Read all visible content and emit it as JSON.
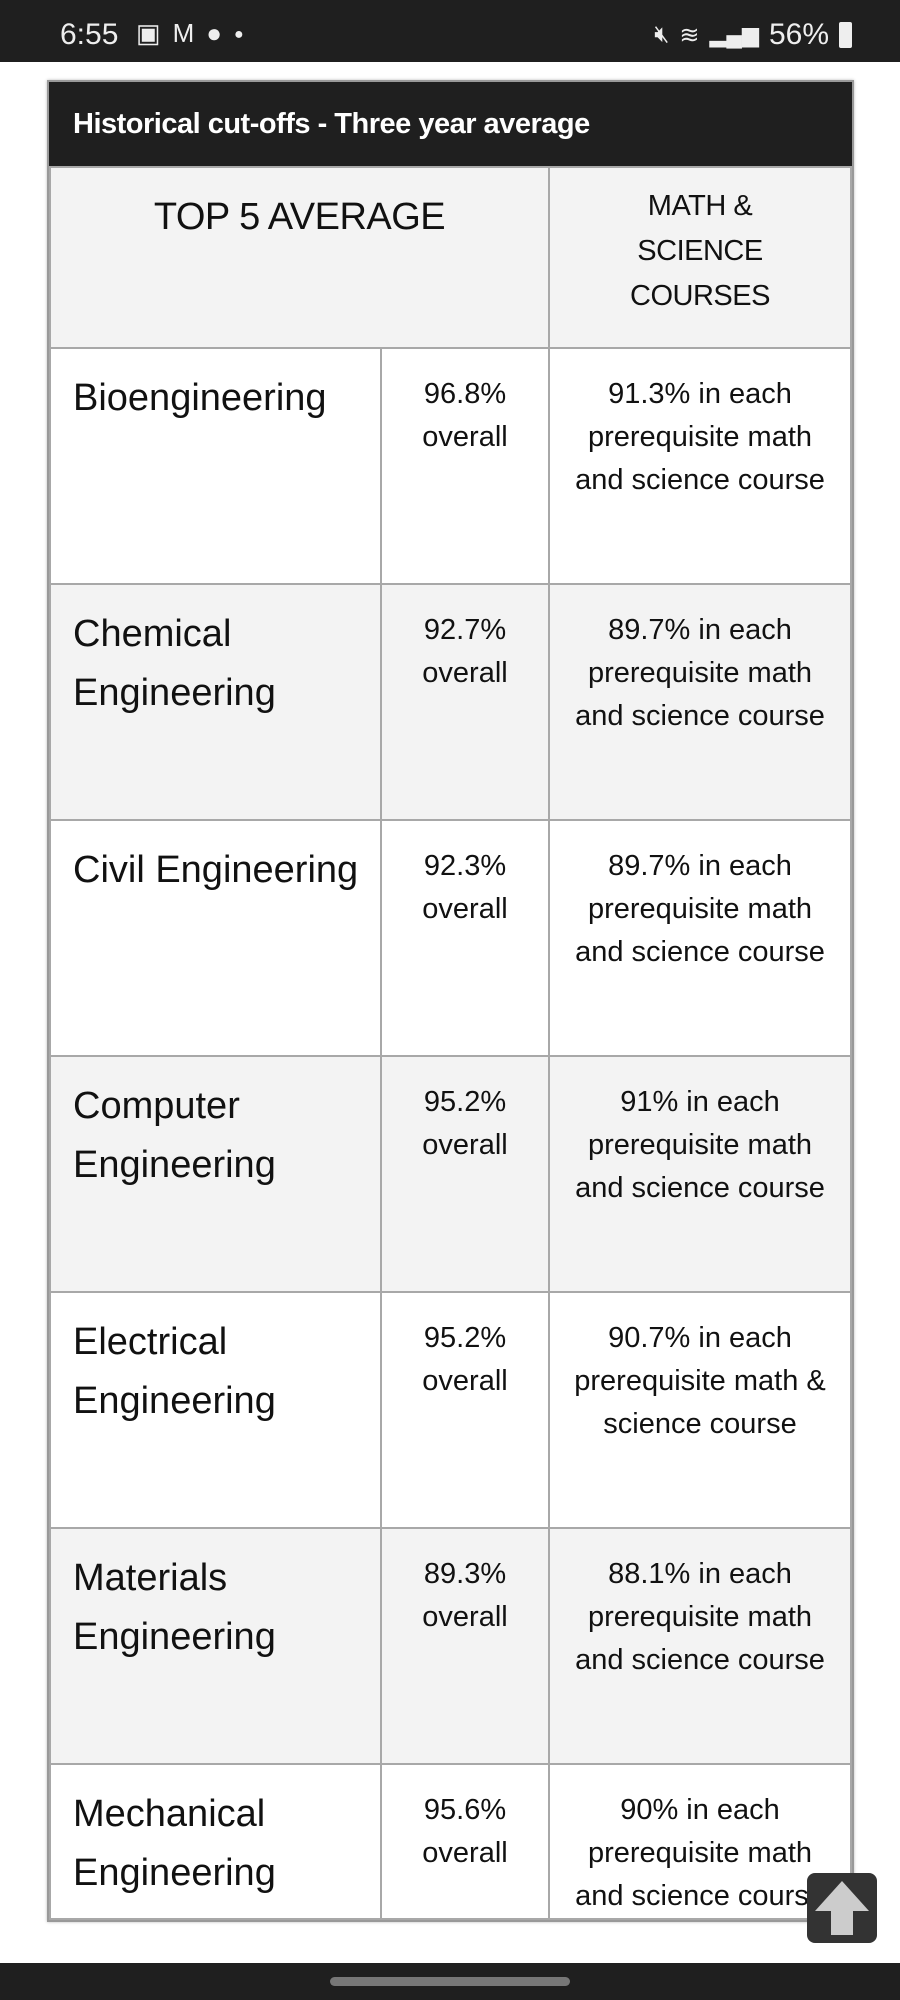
{
  "status_bar": {
    "time": "6:55",
    "battery": "56%"
  },
  "table": {
    "title": "Historical cut-offs - Three year average",
    "headers": [
      "TOP 5 AVERAGE",
      "MATH & SCIENCE COURSES"
    ],
    "rows": [
      {
        "program": "Bioengineering",
        "average": "96.8% overall",
        "requirement": "91.3% in each prerequisite math and science course"
      },
      {
        "program": "Chemical Engineering",
        "average": "92.7% overall",
        "requirement": "89.7% in each prerequisite math and science course"
      },
      {
        "program": "Civil Engineering",
        "average": "92.3% overall",
        "requirement": "89.7% in each prerequisite math and science course"
      },
      {
        "program": "Computer Engineering",
        "average": "95.2% overall",
        "requirement": "91% in each prerequisite math and science course"
      },
      {
        "program": "Electrical Engineering",
        "average": "95.2% overall",
        "requirement": "90.7% in each prerequisite math & science course"
      },
      {
        "program": "Materials Engineering",
        "average": "89.3% overall",
        "requirement": "88.1% in each prerequisite math and science course"
      },
      {
        "program": "Mechanical Engineering",
        "average": "95.6% overall",
        "requirement": "90% in each prerequisite math and science course"
      }
    ]
  }
}
